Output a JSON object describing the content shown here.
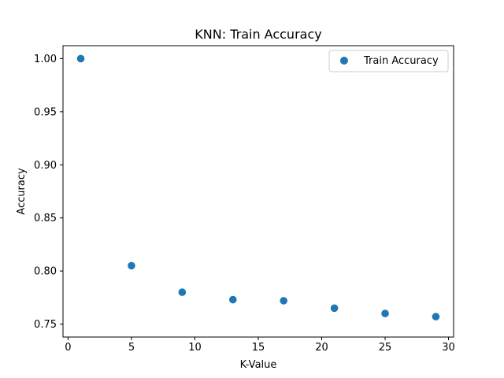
{
  "chart_data": {
    "type": "scatter",
    "title": "KNN: Train Accuracy",
    "xlabel": "K-Value",
    "ylabel": "Accuracy",
    "xlim": [
      -0.4,
      30.4
    ],
    "ylim": [
      0.7378,
      1.0122
    ],
    "xticks": [
      0,
      5,
      10,
      15,
      20,
      25,
      30
    ],
    "xtick_labels": [
      "0",
      "5",
      "10",
      "15",
      "20",
      "25",
      "30"
    ],
    "yticks": [
      0.75,
      0.8,
      0.85,
      0.9,
      0.95,
      1.0
    ],
    "ytick_labels": [
      "0.75",
      "0.80",
      "0.85",
      "0.90",
      "0.95",
      "1.00"
    ],
    "grid": false,
    "legend_position": "top-right",
    "series": [
      {
        "name": "Train Accuracy",
        "color": "#1f77b4",
        "marker": "circle",
        "x": [
          1,
          5,
          9,
          13,
          17,
          21,
          25,
          29
        ],
        "y": [
          1.0,
          0.805,
          0.78,
          0.773,
          0.772,
          0.765,
          0.76,
          0.757
        ]
      }
    ]
  }
}
